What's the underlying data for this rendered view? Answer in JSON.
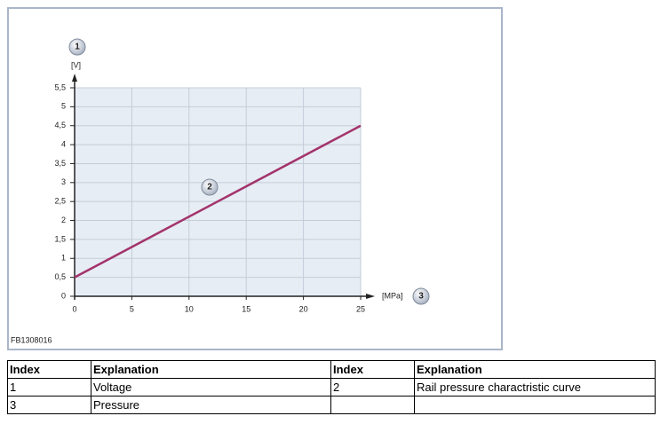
{
  "figure_id": "FB1308016",
  "chart_data": {
    "type": "line",
    "x_label": "[MPa]",
    "y_label": "[V]",
    "annotations": [
      "1",
      "2",
      "3"
    ],
    "x": [
      0,
      25
    ],
    "series": [
      {
        "name": "Rail pressure charactristic curve",
        "color": "#a3336c",
        "values": [
          0.5,
          4.5
        ]
      }
    ],
    "xlim": [
      0,
      25
    ],
    "xticks": [
      0,
      5,
      10,
      15,
      20,
      25
    ],
    "ylim": [
      0,
      5.5
    ],
    "yticks": [
      0,
      {
        "value": 0.5,
        "label": "0,5"
      },
      1,
      {
        "value": 1.5,
        "label": "1,5"
      },
      2,
      {
        "value": 2.5,
        "label": "2,5"
      },
      3,
      {
        "value": 3.5,
        "label": "3,5"
      },
      4,
      {
        "value": 4.5,
        "label": "4,5"
      },
      5,
      {
        "value": 5.5,
        "label": "5,5"
      }
    ],
    "grid": true
  },
  "table": {
    "rows": [
      [
        "Index",
        "Explanation",
        "Index",
        "Explanation"
      ],
      [
        "1",
        "Voltage",
        "2",
        "Rail pressure charactristic curve"
      ],
      [
        "3",
        "Pressure"
      ]
    ]
  }
}
